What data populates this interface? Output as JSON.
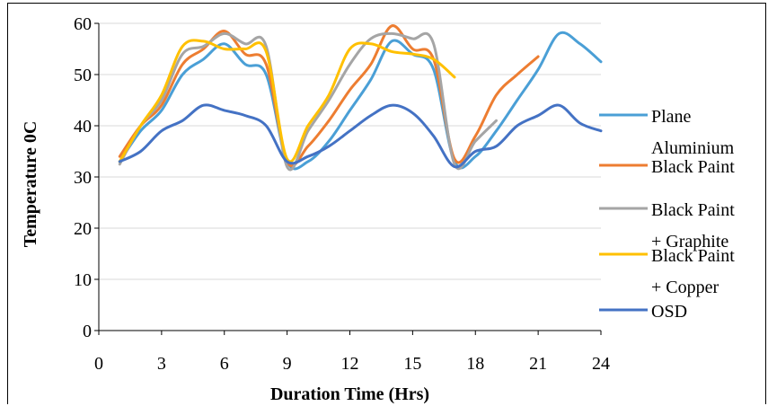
{
  "chart_data": {
    "type": "line",
    "xlabel": "Duration Time (Hrs)",
    "ylabel": "Temperature 0C",
    "xlim": [
      0,
      24
    ],
    "ylim": [
      0,
      60
    ],
    "xticks": [
      "0",
      "3",
      "6",
      "9",
      "12",
      "15",
      "18",
      "21",
      "24"
    ],
    "yticks": [
      "0",
      "10",
      "20",
      "30",
      "40",
      "50",
      "60"
    ],
    "grid": "horizontal",
    "legend_position": "right",
    "series": [
      {
        "name": "Plane Aluminium",
        "color": "#4a9fd6",
        "x": [
          1,
          2,
          3,
          4,
          5,
          6,
          7,
          8,
          9,
          10,
          11,
          12,
          13,
          14,
          15,
          16,
          17,
          18,
          19,
          20,
          21,
          22,
          23,
          24
        ],
        "y": [
          33,
          39,
          43,
          50,
          53,
          56,
          52,
          50,
          33,
          33,
          37,
          43,
          49,
          56.5,
          54,
          51,
          33,
          34,
          39,
          45,
          51,
          58,
          56,
          52.5
        ]
      },
      {
        "name": "Black Paint",
        "color": "#ed7d31",
        "x": [
          1,
          2,
          3,
          4,
          5,
          6,
          7,
          8,
          9,
          10,
          11,
          12,
          13,
          14,
          15,
          16,
          17,
          18,
          19,
          20,
          21
        ],
        "y": [
          34,
          40,
          44,
          52,
          55,
          58.5,
          54,
          52,
          33,
          36,
          41,
          47,
          52,
          59.5,
          55,
          53,
          33.5,
          38,
          46,
          50,
          53.5
        ]
      },
      {
        "name": "Black Paint + Graphite",
        "color": "#a5a5a5",
        "x": [
          1,
          2,
          3,
          4,
          5,
          6,
          7,
          8,
          9,
          10,
          11,
          12,
          13,
          14,
          15,
          16,
          17,
          18,
          19
        ],
        "y": [
          32.5,
          40,
          45,
          54,
          55.5,
          58,
          56,
          55.5,
          32,
          39,
          45,
          52,
          57,
          58,
          57,
          56,
          32.5,
          37,
          41
        ]
      },
      {
        "name": "Black Paint + Copper",
        "color": "#ffc000",
        "x": [
          1,
          2,
          3,
          4,
          5,
          6,
          7,
          8,
          9,
          10,
          11,
          12,
          13,
          14,
          15,
          16,
          17
        ],
        "y": [
          33,
          40,
          46,
          55.5,
          56.5,
          55,
          55,
          54.5,
          33.5,
          40,
          46,
          55,
          56,
          54.5,
          54,
          53,
          49.5
        ]
      },
      {
        "name": "OSD",
        "color": "#4472c4",
        "x": [
          1,
          2,
          3,
          4,
          5,
          6,
          7,
          8,
          9,
          10,
          11,
          12,
          13,
          14,
          15,
          16,
          17,
          18,
          19,
          20,
          21,
          22,
          23,
          24
        ],
        "y": [
          33,
          35,
          39,
          41,
          44,
          43,
          42,
          40,
          33,
          34,
          36,
          39,
          42,
          44,
          42.5,
          38,
          32,
          35,
          36,
          40,
          42,
          44,
          40.5,
          39
        ]
      }
    ]
  }
}
